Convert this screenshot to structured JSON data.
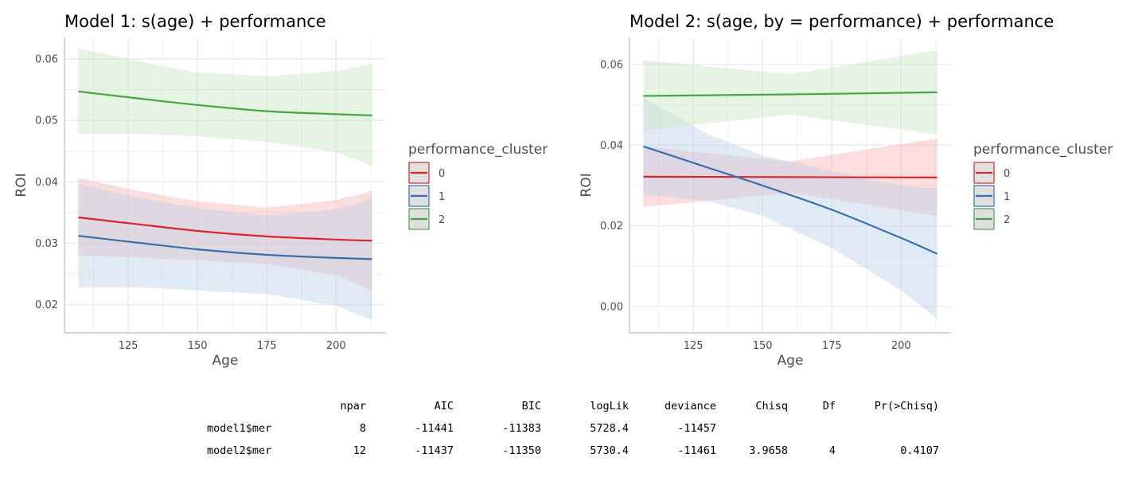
{
  "chart_data": [
    {
      "type": "line",
      "title": "Model 1: s(age) + performance",
      "xlabel": "Age",
      "ylabel": "ROI",
      "xlim": [
        102,
        218
      ],
      "ylim": [
        0.0154,
        0.0635
      ],
      "x_ticks": [
        125,
        150,
        175,
        200
      ],
      "y_ticks": [
        0.02,
        0.03,
        0.04,
        0.05,
        0.06
      ],
      "grid": true,
      "legend": {
        "title": "performance_cluster",
        "placement": "right"
      },
      "series": [
        {
          "name": "0",
          "color": "#d7262c",
          "fill": "#f8b4b4",
          "x": [
            107,
            130,
            150,
            175,
            200,
            213
          ],
          "y": [
            0.0342,
            0.033,
            0.032,
            0.0311,
            0.0306,
            0.0304
          ],
          "lower": [
            0.028,
            0.0276,
            0.0272,
            0.0266,
            0.0248,
            0.0222
          ],
          "upper": [
            0.0406,
            0.0384,
            0.0368,
            0.0358,
            0.037,
            0.0385
          ]
        },
        {
          "name": "1",
          "color": "#3a6fae",
          "fill": "#bcd3ea",
          "x": [
            107,
            130,
            150,
            175,
            200,
            213
          ],
          "y": [
            0.0312,
            0.03,
            0.029,
            0.0281,
            0.0276,
            0.0274
          ],
          "lower": [
            0.0228,
            0.0228,
            0.0223,
            0.0217,
            0.0198,
            0.0175
          ],
          "upper": [
            0.0397,
            0.0373,
            0.0357,
            0.0345,
            0.0355,
            0.0373
          ]
        },
        {
          "name": "2",
          "color": "#4aa544",
          "fill": "#c7e6c3",
          "x": [
            107,
            130,
            150,
            175,
            200,
            213
          ],
          "y": [
            0.0547,
            0.0535,
            0.0525,
            0.0515,
            0.051,
            0.0508
          ],
          "lower": [
            0.0478,
            0.0478,
            0.0474,
            0.0465,
            0.0448,
            0.0426
          ],
          "upper": [
            0.0617,
            0.0595,
            0.0578,
            0.0572,
            0.058,
            0.0592
          ]
        }
      ]
    },
    {
      "type": "line",
      "title": "Model 2: s(age, by = performance) + performance",
      "xlabel": "Age",
      "ylabel": "ROI",
      "xlim": [
        102,
        218
      ],
      "ylim": [
        -0.0065,
        0.0667
      ],
      "x_ticks": [
        125,
        150,
        175,
        200
      ],
      "y_ticks": [
        0.0,
        0.02,
        0.04,
        0.06
      ],
      "grid": true,
      "legend": {
        "title": "performance_cluster",
        "placement": "right"
      },
      "series": [
        {
          "name": "0",
          "color": "#d7262c",
          "fill": "#f8b4b4",
          "x": [
            107,
            160,
            213
          ],
          "y": [
            0.0322,
            0.0321,
            0.032
          ],
          "lower": [
            0.0247,
            0.0282,
            0.0225
          ],
          "upper": [
            0.0397,
            0.036,
            0.0417
          ]
        },
        {
          "name": "1",
          "color": "#3a6fae",
          "fill": "#bcd3ea",
          "x": [
            107,
            130,
            150,
            175,
            200,
            213
          ],
          "y": [
            0.0397,
            0.0345,
            0.03,
            0.024,
            0.017,
            0.0131
          ],
          "lower": [
            0.0278,
            0.0262,
            0.0225,
            0.0145,
            0.004,
            -0.003
          ],
          "upper": [
            0.0517,
            0.0428,
            0.0375,
            0.0335,
            0.03,
            0.0292
          ]
        },
        {
          "name": "2",
          "color": "#4aa544",
          "fill": "#c7e6c3",
          "x": [
            107,
            160,
            213
          ],
          "y": [
            0.0522,
            0.0526,
            0.0531
          ],
          "lower": [
            0.0437,
            0.0476,
            0.0427
          ],
          "upper": [
            0.0611,
            0.0576,
            0.0635
          ]
        }
      ]
    }
  ],
  "anova_table": {
    "columns": [
      "npar",
      "AIC",
      "BIC",
      "logLik",
      "deviance",
      "Chisq",
      "Df",
      "Pr(>Chisq)"
    ],
    "rows": [
      {
        "label": "model1$mer",
        "values": [
          "8",
          "-11441",
          "-11383",
          "5728.4",
          "-11457",
          "",
          "",
          ""
        ]
      },
      {
        "label": "model2$mer",
        "values": [
          "12",
          "-11437",
          "-11350",
          "5730.4",
          "-11461",
          "3.9658",
          "4",
          "0.4107"
        ]
      }
    ]
  }
}
